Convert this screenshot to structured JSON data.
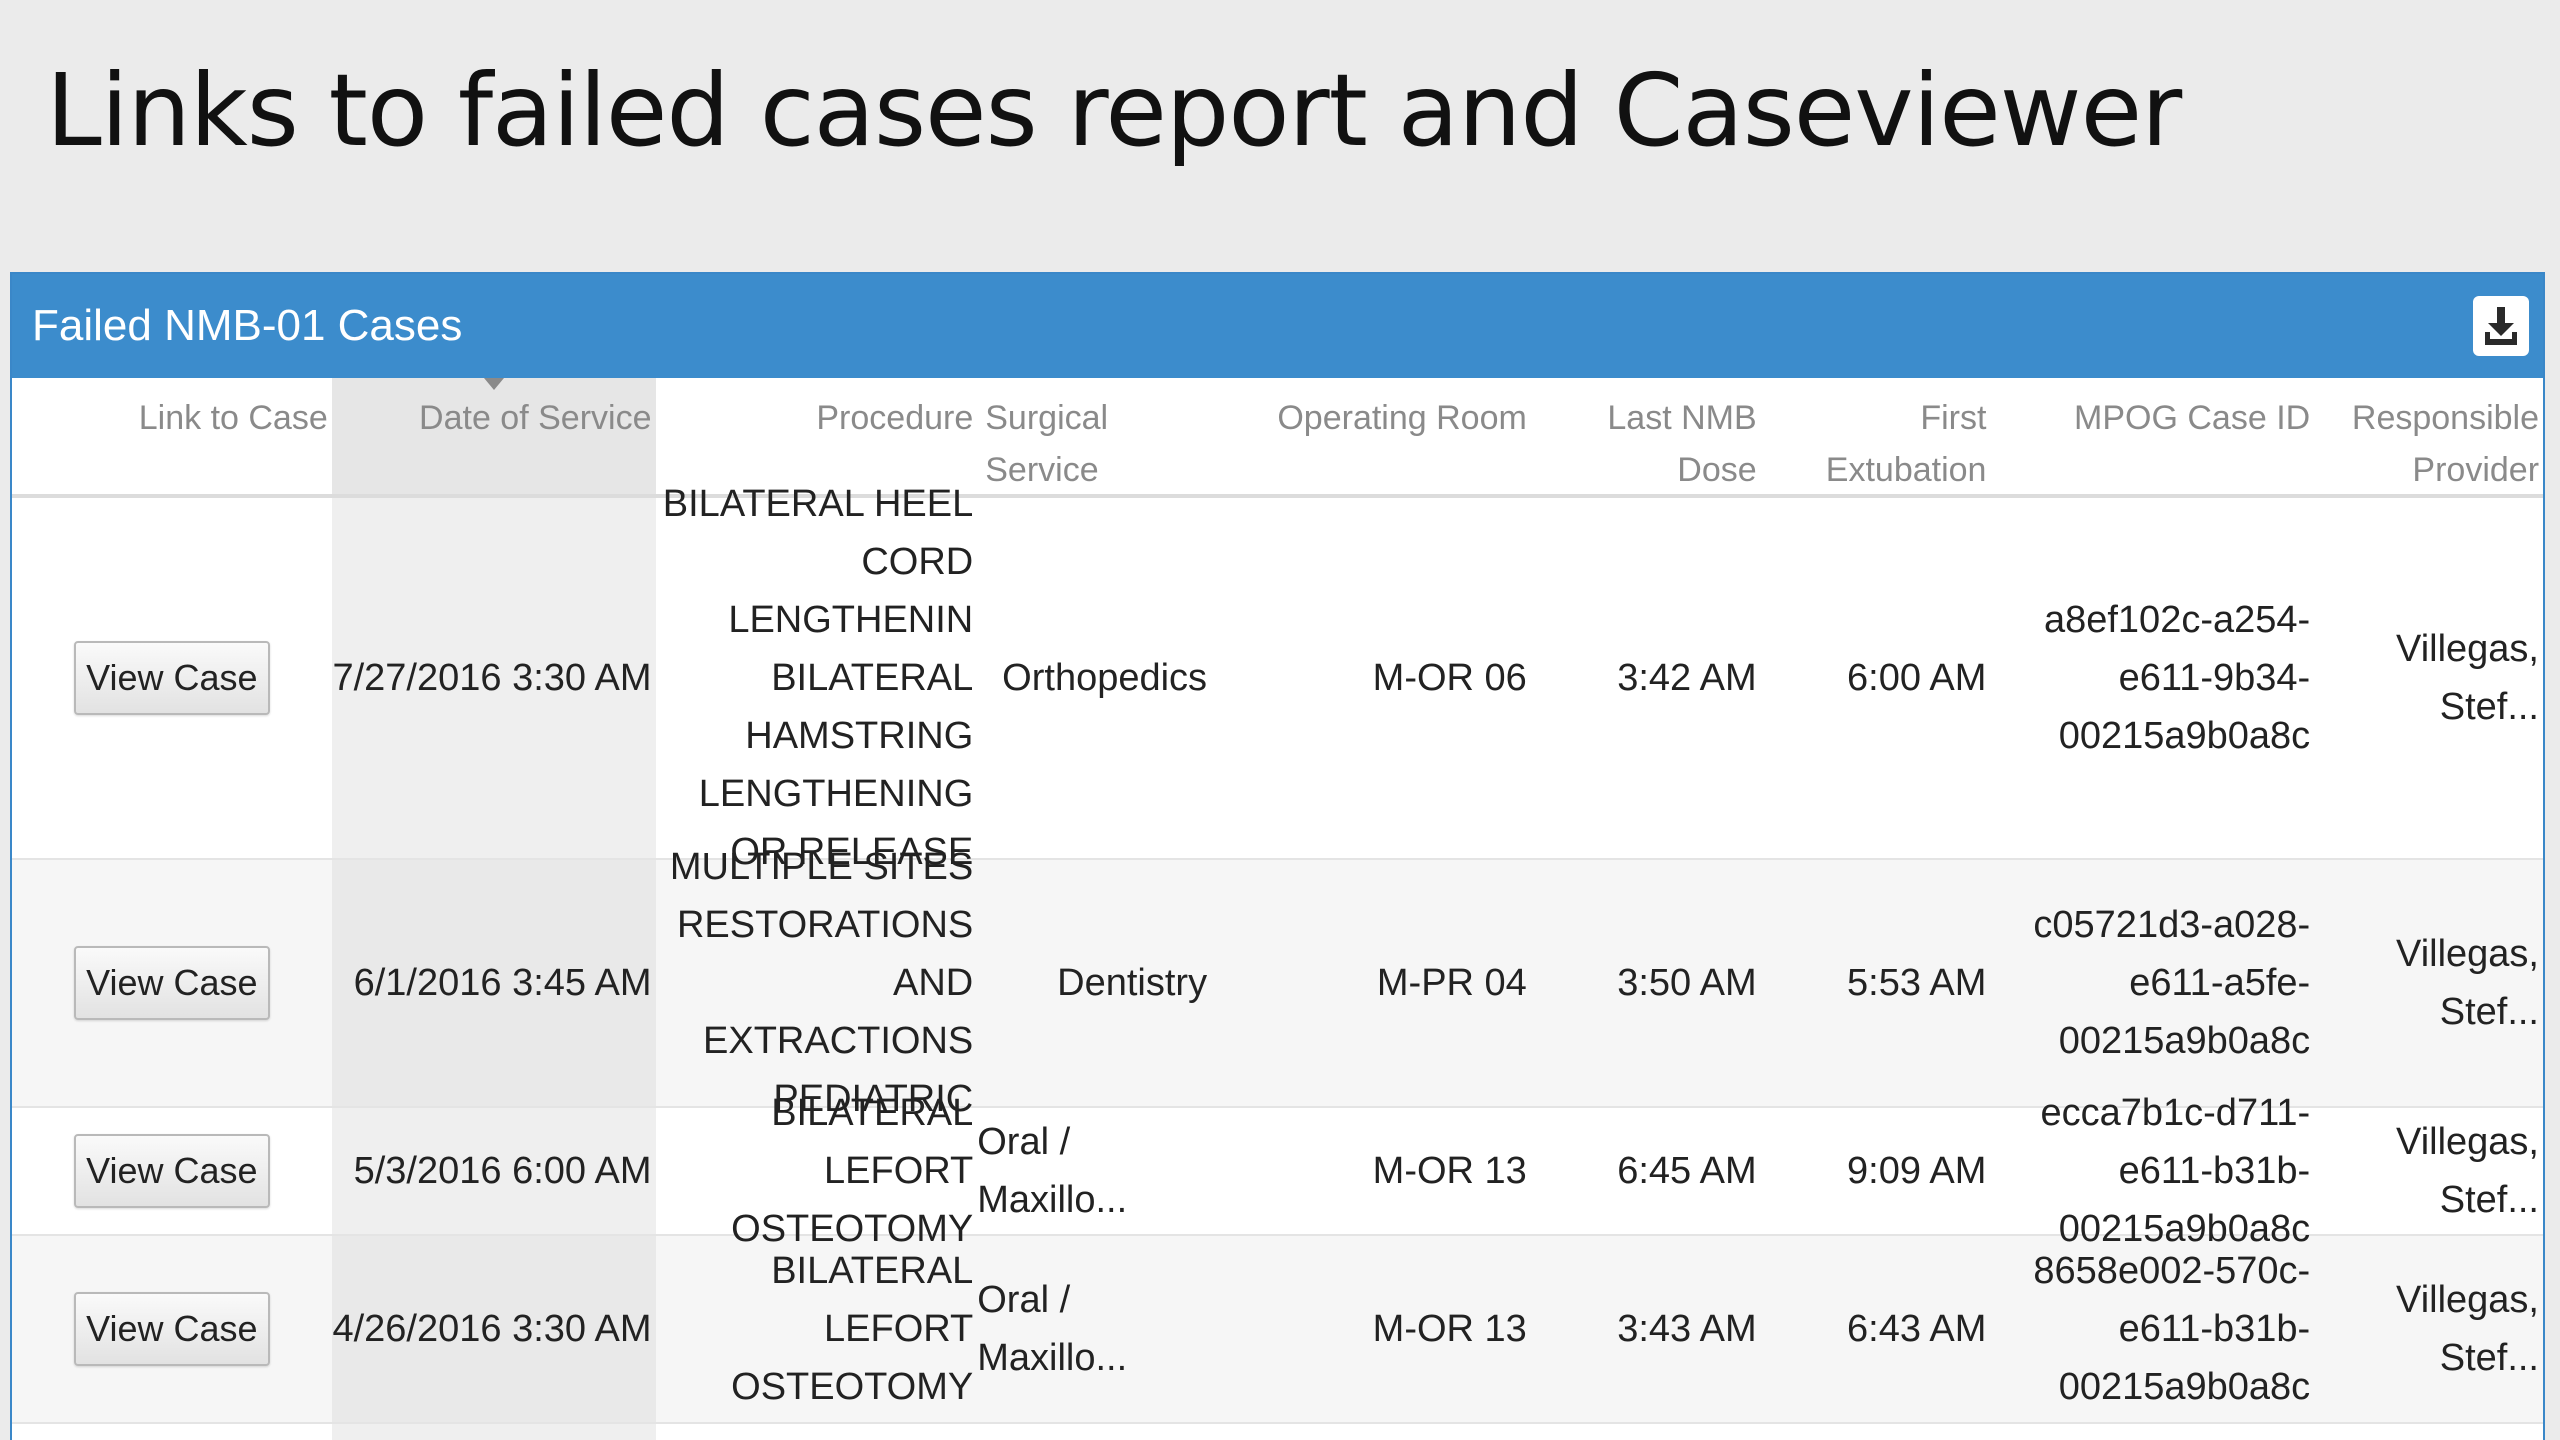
{
  "slide": {
    "title": "Links to failed cases report and Caseviewer"
  },
  "panel": {
    "title": "Failed NMB-01 Cases",
    "download_icon": "download-icon"
  },
  "colors": {
    "header_blue": "#3c8ccc",
    "sorted_column": "#efefef"
  },
  "table": {
    "columns": [
      {
        "key": "link",
        "label": "Link to Case"
      },
      {
        "key": "date",
        "label": "Date of Service",
        "sorted": true
      },
      {
        "key": "procedure",
        "label": "Procedure"
      },
      {
        "key": "service",
        "label": "Surgical Service"
      },
      {
        "key": "room",
        "label": "Operating Room"
      },
      {
        "key": "nmb",
        "label": "Last NMB Dose"
      },
      {
        "key": "extubation",
        "label": "First Extubation"
      },
      {
        "key": "case_id",
        "label": "MPOG Case ID"
      },
      {
        "key": "provider",
        "label": "Responsible Provider"
      }
    ],
    "rows": [
      {
        "button": "View Case",
        "date": "7/27/2016 3:30 AM",
        "procedure": "BILATERAL HEEL CORD LENGTHENIN BILATERAL HAMSTRING LENGTHENING OR RELEASE",
        "service": "Orthopedics",
        "room": "M-OR 06",
        "nmb": "3:42 AM",
        "extubation": "6:00 AM",
        "case_id": "a8ef102c-a254-e611-9b34-00215a9b0a8c",
        "provider": "Villegas, Stef..."
      },
      {
        "button": "View Case",
        "date": "6/1/2016 3:45 AM",
        "procedure": "MULTIPLE SITES RESTORATIONS AND EXTRACTIONS PEDIATRIC",
        "service": "Dentistry",
        "room": "M-PR 04",
        "nmb": "3:50 AM",
        "extubation": "5:53 AM",
        "case_id": "c05721d3-a028-e611-a5fe-00215a9b0a8c",
        "provider": "Villegas, Stef..."
      },
      {
        "button": "View Case",
        "date": "5/3/2016 6:00 AM",
        "procedure": "BILATERAL LEFORT OSTEOTOMY",
        "service": "Oral / Maxillo...",
        "room": "M-OR 13",
        "nmb": "6:45 AM",
        "extubation": "9:09 AM",
        "case_id": "ecca7b1c-d711-e611-b31b-00215a9b0a8c",
        "provider": "Villegas, Stef..."
      },
      {
        "button": "View Case",
        "date": "4/26/2016 3:30 AM",
        "procedure": "BILATERAL LEFORT OSTEOTOMY",
        "service": "Oral / Maxillo...",
        "room": "M-OR 13",
        "nmb": "3:43 AM",
        "extubation": "6:43 AM",
        "case_id": "8658e002-570c-e611-b31b-00215a9b0a8c",
        "provider": "Villegas, Stef..."
      }
    ]
  }
}
